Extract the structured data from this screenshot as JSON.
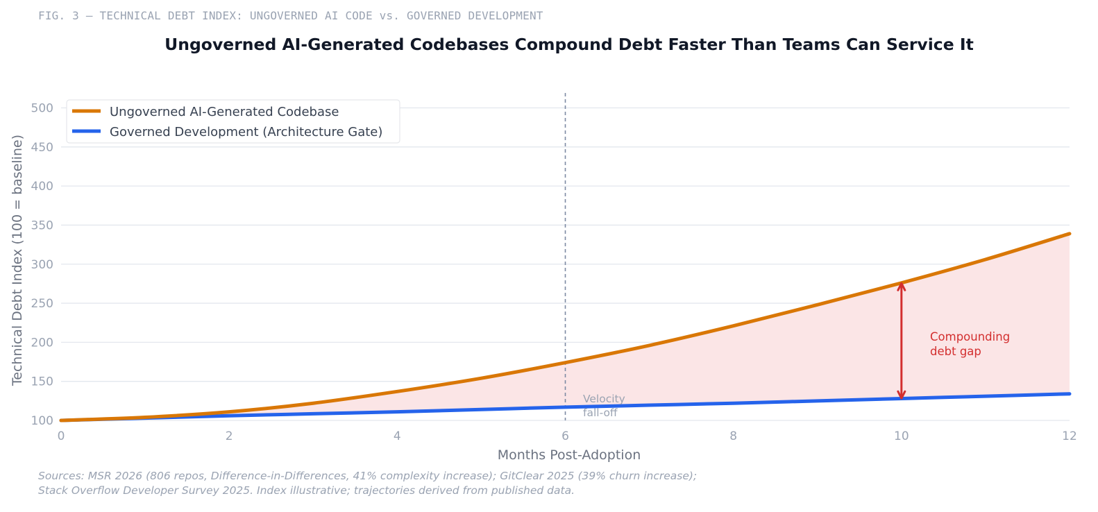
{
  "figure": {
    "label": "FIG. 3 — TECHNICAL DEBT INDEX: UNGOVERNED AI CODE vs. GOVERNED DEVELOPMENT",
    "source_line1": "Sources: MSR 2026 (806 repos, Difference-in-Differences, 41% complexity increase); GitClear 2025 (39% churn increase);",
    "source_line2": "Stack Overflow Developer Survey 2025. Index illustrative; trajectories derived from published data."
  },
  "chart_data": {
    "type": "line",
    "title": "Ungoverned AI-Generated Codebases Compound Debt Faster Than Teams Can Service It",
    "xlabel": "Months Post-Adoption",
    "ylabel": "Technical Debt Index (100 = baseline)",
    "xlim": [
      0,
      12
    ],
    "ylim": [
      100,
      520
    ],
    "x_ticks": [
      0,
      2,
      4,
      6,
      8,
      10,
      12
    ],
    "y_ticks": [
      100,
      150,
      200,
      250,
      300,
      350,
      400,
      450,
      500
    ],
    "grid": "horizontal",
    "legend_position": "top-left",
    "x": [
      0,
      1,
      2,
      3,
      4,
      5,
      6,
      7,
      8,
      9,
      10,
      11,
      12
    ],
    "series": [
      {
        "name": "Ungoverned AI-Generated Codebase",
        "color": "#d97706",
        "values": [
          100,
          104,
          111,
          122,
          137,
          154,
          174,
          196,
          221,
          248,
          276,
          306,
          339
        ]
      },
      {
        "name": "Governed Development (Architecture Gate)",
        "color": "#2563eb",
        "values": [
          100,
          103,
          106,
          108.5,
          111,
          114,
          117,
          119.5,
          122,
          125,
          128,
          131,
          134
        ]
      }
    ],
    "shaded_gap_color": "#fbe5e6",
    "annotations": {
      "vline": {
        "x": 6,
        "label_line1": "Velocity",
        "label_line2": "fall-off"
      },
      "gap_arrow": {
        "x": 10,
        "y_from": 130,
        "y_to": 272,
        "color": "#d32f2f",
        "label_line1": "Compounding",
        "label_line2": "debt gap"
      }
    }
  }
}
